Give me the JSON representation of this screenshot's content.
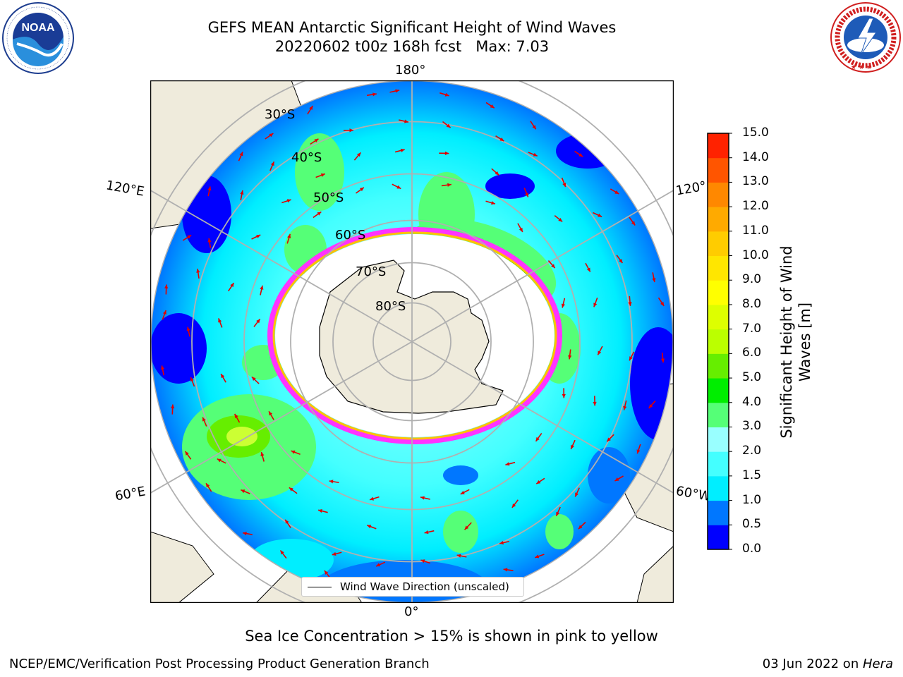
{
  "title": {
    "line1": "GEFS MEAN Antarctic Significant Height of Wind Waves",
    "line2": "20220602 t00z 168h fcst   Max: 7.03"
  },
  "logos": {
    "noaa_text": "NOAA",
    "noaa_ring": "NATIONAL OCEANIC AND ATMOSPHERIC ADMINISTRATION · U.S. DEPARTMENT OF COMMERCE",
    "nws_ring": "NATIONAL WEATHER SERVICE"
  },
  "map": {
    "projection": "south polar stereographic",
    "longitude_labels": [
      "180°",
      "120°E",
      "120°",
      "60°E",
      "60°W",
      "0°"
    ],
    "latitude_labels": [
      "30°S",
      "40°S",
      "50°S",
      "60°S",
      "70°S",
      "80°S"
    ],
    "land_color": "#efebdc",
    "ice_edge_colors": [
      "#ff33ff",
      "#ffc000"
    ]
  },
  "legend": {
    "label": "Wind Wave Direction (unscaled)"
  },
  "colorbar": {
    "label": "Significant Height of Wind Waves [m]",
    "label_line1": "Significant Height of Wind",
    "label_line2": "Waves [m]",
    "ticks": [
      "0.0",
      "0.5",
      "1.0",
      "1.5",
      "2.0",
      "3.0",
      "4.0",
      "5.0",
      "6.0",
      "7.0",
      "8.0",
      "9.0",
      "10.0",
      "11.0",
      "12.0",
      "13.0",
      "14.0",
      "15.0"
    ],
    "colors": [
      "#0000ff",
      "#0077ff",
      "#00eeff",
      "#44ffff",
      "#99ffff",
      "#55ff77",
      "#00ee00",
      "#66ee00",
      "#bbff00",
      "#ddff00",
      "#ffff00",
      "#ffe600",
      "#ffcc00",
      "#ffaa00",
      "#ff8800",
      "#ff5500",
      "#ff2200"
    ]
  },
  "footer": {
    "note": "Sea Ice Concentration > 15% is shown in pink to yellow",
    "left": "NCEP/EMC/Verification Post Processing Product Generation Branch",
    "right_prefix": "03 Jun 2022 on ",
    "right_host": "Hera"
  }
}
